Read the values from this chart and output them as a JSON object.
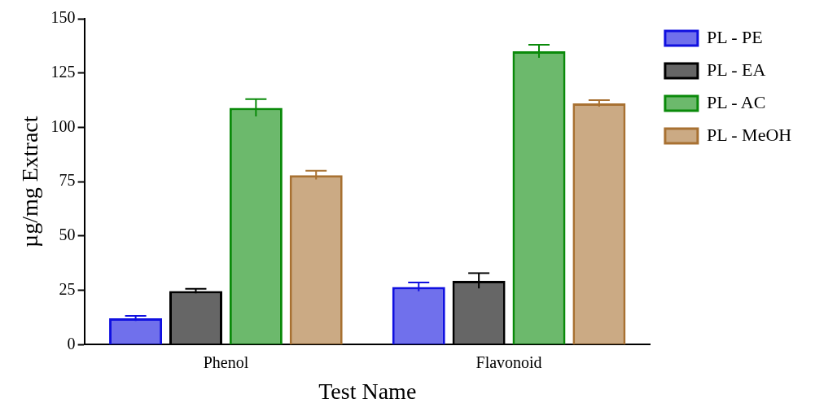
{
  "chart_data": {
    "type": "bar",
    "xlabel": "Test Name",
    "ylabel": "µg/mg Extract",
    "categories": [
      "Phenol",
      "Flavonoid"
    ],
    "series": [
      {
        "name": "PL - PE",
        "color": "#1010e0",
        "values": [
          12.1,
          26.6
        ],
        "errors": [
          1.2,
          2
        ]
      },
      {
        "name": "PL - EA",
        "color": "#000000",
        "values": [
          24.7,
          29.4
        ],
        "errors": [
          1,
          3.5
        ]
      },
      {
        "name": "PL - AC",
        "color": "#0a8a0a",
        "values": [
          109,
          135
        ],
        "errors": [
          4,
          3
        ]
      },
      {
        "name": "PL - MeOH",
        "color": "#a87132",
        "values": [
          78,
          111
        ],
        "errors": [
          2,
          1.5
        ]
      }
    ],
    "ylim": [
      0,
      150
    ],
    "yticks": [
      0,
      25,
      50,
      75,
      100,
      125,
      150
    ],
    "grid": false,
    "legend": "top right"
  }
}
